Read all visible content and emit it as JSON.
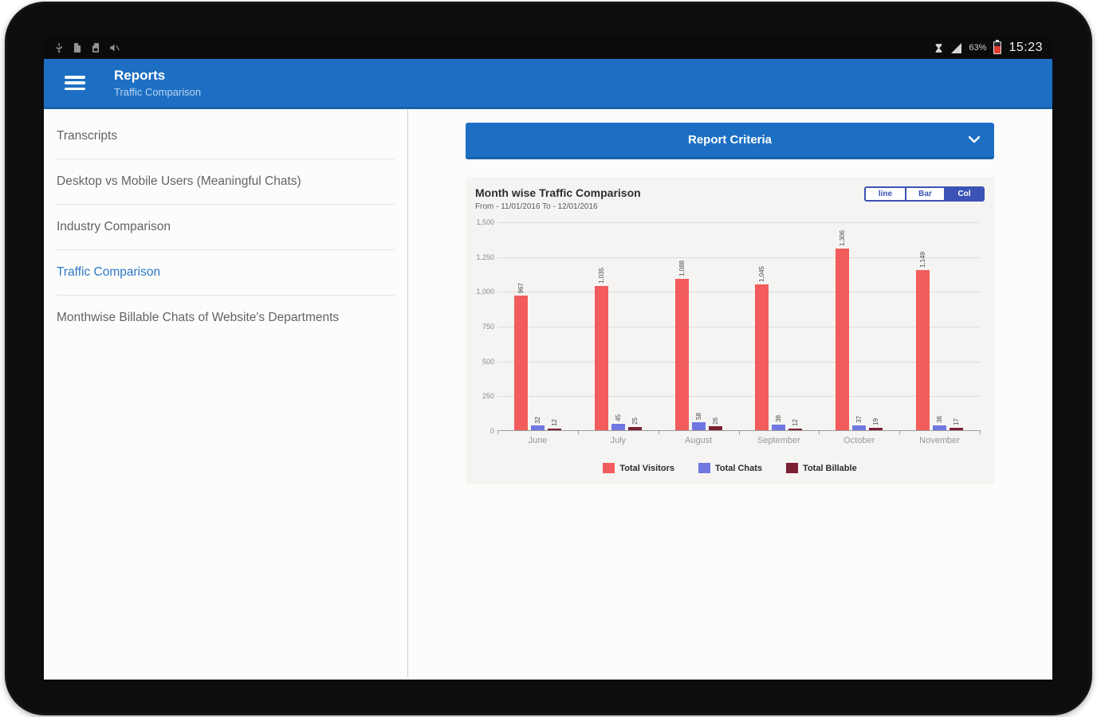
{
  "status_bar": {
    "time": "15:23",
    "battery_percent": "63%",
    "left_icons": [
      "usb-icon",
      "file-icon",
      "sd-card-icon",
      "mute-icon"
    ],
    "right_icons": [
      "hourglass-icon",
      "signal-icon",
      "battery-icon"
    ]
  },
  "app_bar": {
    "title": "Reports",
    "subtitle": "Traffic Comparison"
  },
  "sidebar": {
    "items": [
      {
        "label": "Transcripts",
        "active": false
      },
      {
        "label": "Desktop vs Mobile Users (Meaningful Chats)",
        "active": false
      },
      {
        "label": "Industry Comparison",
        "active": false
      },
      {
        "label": "Traffic Comparison",
        "active": true
      },
      {
        "label": "Monthwise Billable Chats of Website's Departments",
        "active": false
      }
    ]
  },
  "report_criteria": {
    "label": "Report Criteria"
  },
  "chart_data": {
    "type": "bar",
    "title": "Month wise Traffic Comparison",
    "subtitle": "From - 11/01/2016 To - 12/01/2016",
    "type_buttons": [
      {
        "label": "line",
        "selected": false
      },
      {
        "label": "Bar",
        "selected": false
      },
      {
        "label": "Col",
        "selected": true
      }
    ],
    "categories": [
      "June",
      "July",
      "August",
      "September",
      "October",
      "November"
    ],
    "series": [
      {
        "name": "Total Visitors",
        "color": "#f25c5c",
        "values": [
          967,
          1035,
          1088,
          1045,
          1306,
          1149
        ]
      },
      {
        "name": "Total Chats",
        "color": "#7177e0",
        "values": [
          32,
          45,
          58,
          38,
          37,
          36
        ]
      },
      {
        "name": "Total Billable",
        "color": "#7a2033",
        "values": [
          12,
          25,
          26,
          12,
          19,
          17
        ]
      }
    ],
    "ylim": [
      0,
      1500
    ],
    "ytick_step": 250,
    "grid": true,
    "legend_position": "bottom",
    "bar_value_labels": "rotated-90"
  }
}
